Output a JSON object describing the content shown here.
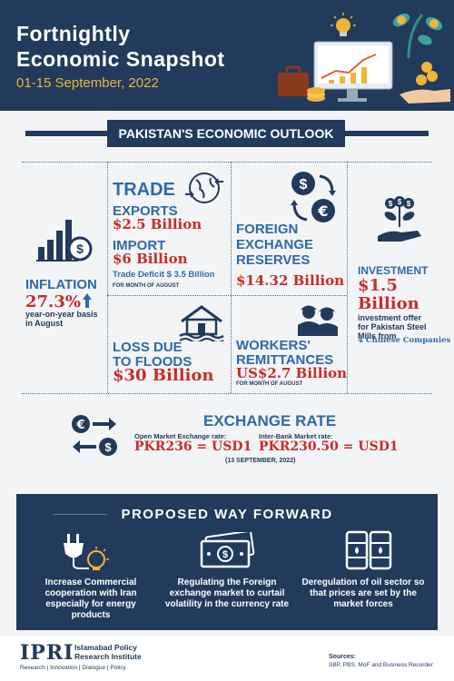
{
  "header": {
    "title_line1": "Fortnightly",
    "title_line2": "Economic Snapshot",
    "date_range": "01-15 September, 2022"
  },
  "outlook": {
    "banner": "PAKISTAN'S ECONOMIC OUTLOOK"
  },
  "inflation": {
    "label": "INFLATION",
    "value": "27.3%",
    "note": "year-on-year basis in August"
  },
  "trade": {
    "title": "TRADE",
    "exports_label": "EXPORTS",
    "exports_value": "$2.5 Billion",
    "import_label": "IMPORT",
    "import_value": "$6 Billion",
    "deficit": "Trade Deficit $ 3.5 Billion",
    "period": "FOR MONTH OF AUGUST"
  },
  "fx_reserves": {
    "label_line1": "FOREIGN",
    "label_line2": "EXCHANGE",
    "label_line3": "RESERVES",
    "value": "$14.32 Billion"
  },
  "investment": {
    "label": "INVESTMENT",
    "value_line1": "$1.5",
    "value_line2": "Billion",
    "note": "investment offer for Pakistan Steel Mills from",
    "source": "4 Chinese Companies"
  },
  "floods": {
    "label_line1": "LOSS DUE",
    "label_line2": "TO FLOODS",
    "value": "$30 Billion"
  },
  "remittances": {
    "label_line1": "WORKERS'",
    "label_line2": "REMITTANCES",
    "value": "US$2.7 Billion",
    "period": "FOR MONTH OF AUGUST"
  },
  "exchange_rate": {
    "title": "EXCHANGE RATE",
    "open_label": "Open Market Exchange rate:",
    "open_value": "PKR236 = USD1",
    "interbank_label": "Inter-Bank Market rate:",
    "interbank_value": "PKR230.50 = USD1",
    "date": "(13 SEPTEMBER, 2022)"
  },
  "way_forward": {
    "title": "PROPOSED WAY FORWARD",
    "items": [
      {
        "text": "Increase Commercial cooperation with Iran especially for energy products",
        "icon": "plug-bulb-icon"
      },
      {
        "text": "Regulating the Foreign exchange market to curtail volatility in the currency rate",
        "icon": "banknote-icon"
      },
      {
        "text": "Deregulation of oil sector so that prices are set by the market forces",
        "icon": "oil-barrels-icon"
      }
    ]
  },
  "footer": {
    "logo": "IPRI",
    "org_line1": "Islamabad Policy",
    "org_line2": "Research Institute",
    "tagline": "Research | Innovation | Dialogue | Policy",
    "sources_label": "Sources:",
    "sources_text": "SBP, PBS, MoF and Business Recorder"
  },
  "colors": {
    "navy": "#223b5c",
    "accent_blue": "#2e6aa8",
    "value_red": "#c72c2c",
    "gold": "#f0b43a"
  }
}
